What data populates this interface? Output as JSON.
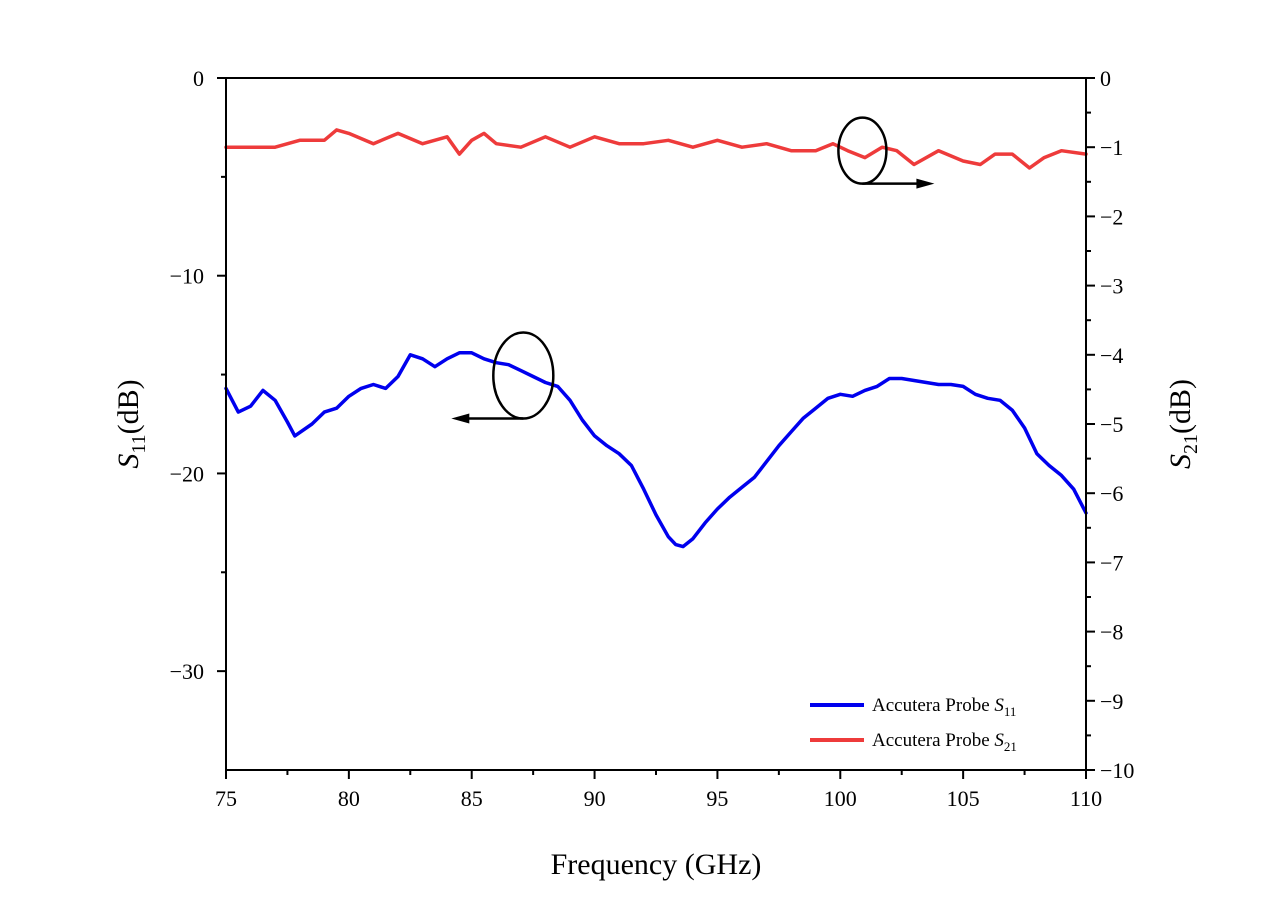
{
  "chart_data": {
    "type": "line",
    "xlabel": "Frequency (GHz)",
    "ylabel_left": {
      "main": "S",
      "sub": "11",
      "tail": "(dB)"
    },
    "ylabel_right": {
      "main": "S",
      "sub": "21",
      "tail": "(dB)"
    },
    "xlim": [
      75,
      110
    ],
    "ylim_left": [
      -35,
      0
    ],
    "ylim_right": [
      -10,
      0
    ],
    "x_ticks": [
      75,
      80,
      85,
      90,
      95,
      100,
      105,
      110
    ],
    "y_left_ticks": [
      0,
      -10,
      -20,
      -30
    ],
    "y_left_tick_labels": [
      "0",
      "−10",
      "−20",
      "−30"
    ],
    "y_right_ticks": [
      0,
      -1,
      -2,
      -3,
      -4,
      -5,
      -6,
      -7,
      -8,
      -9,
      -10
    ],
    "y_right_tick_labels": [
      "0",
      "−1",
      "−2",
      "−3",
      "−4",
      "−5",
      "−6",
      "−7",
      "−8",
      "−9",
      "−10"
    ],
    "grid": false,
    "legend_position": "bottom-right",
    "series": [
      {
        "name_main": "Accutera Probe ",
        "name_sub": "11",
        "axis": "left",
        "color": "#0000ee",
        "x": [
          75,
          75.5,
          76,
          76.5,
          77,
          77.5,
          77.8,
          78.5,
          79,
          79.5,
          80,
          80.5,
          81,
          81.5,
          82,
          82.5,
          83,
          83.5,
          84,
          84.5,
          85,
          85.5,
          86,
          86.5,
          87,
          87.5,
          88,
          88.5,
          89,
          89.5,
          90,
          90.5,
          91,
          91.5,
          92,
          92.5,
          93,
          93.3,
          93.6,
          94,
          94.5,
          95,
          95.5,
          96,
          96.5,
          97,
          97.5,
          98,
          98.5,
          99,
          99.5,
          100,
          100.5,
          101,
          101.5,
          102,
          102.5,
          103,
          103.5,
          104,
          104.5,
          105,
          105.5,
          106,
          106.5,
          107,
          107.5,
          108,
          108.5,
          109,
          109.5,
          110
        ],
        "y": [
          -15.7,
          -16.9,
          -16.6,
          -15.8,
          -16.3,
          -17.4,
          -18.1,
          -17.5,
          -16.9,
          -16.7,
          -16.1,
          -15.7,
          -15.5,
          -15.7,
          -15.1,
          -14.0,
          -14.2,
          -14.6,
          -14.2,
          -13.9,
          -13.9,
          -14.2,
          -14.4,
          -14.5,
          -14.8,
          -15.1,
          -15.4,
          -15.6,
          -16.3,
          -17.3,
          -18.1,
          -18.6,
          -19.0,
          -19.6,
          -20.8,
          -22.1,
          -23.2,
          -23.6,
          -23.7,
          -23.3,
          -22.5,
          -21.8,
          -21.2,
          -20.7,
          -20.2,
          -19.4,
          -18.6,
          -17.9,
          -17.2,
          -16.7,
          -16.2,
          -16.0,
          -16.1,
          -15.8,
          -15.6,
          -15.2,
          -15.2,
          -15.3,
          -15.4,
          -15.5,
          -15.5,
          -15.6,
          -16.0,
          -16.2,
          -16.3,
          -16.8,
          -17.7,
          -19.0,
          -19.6,
          -20.1,
          -20.8,
          -22.0
        ]
      },
      {
        "name_main": "Accutera Probe ",
        "name_sub": "21",
        "axis": "right",
        "color": "#ee3b3b",
        "x": [
          75,
          76,
          77,
          78,
          79,
          79.5,
          80,
          81,
          82,
          83,
          84,
          84.5,
          85,
          85.5,
          86,
          87,
          88,
          89,
          90,
          91,
          92,
          93,
          94,
          95,
          96,
          97,
          98,
          99,
          99.7,
          100.3,
          101,
          101.7,
          102.3,
          103,
          104,
          105,
          105.7,
          106.3,
          107,
          107.7,
          108.3,
          109,
          110
        ],
        "y": [
          -1.0,
          -1.0,
          -1.0,
          -0.9,
          -0.9,
          -0.75,
          -0.8,
          -0.95,
          -0.8,
          -0.95,
          -0.85,
          -1.1,
          -0.9,
          -0.8,
          -0.95,
          -1.0,
          -0.85,
          -1.0,
          -0.85,
          -0.95,
          -0.95,
          -0.9,
          -1.0,
          -0.9,
          -1.0,
          -0.95,
          -1.05,
          -1.05,
          -0.95,
          -1.05,
          -1.15,
          -1.0,
          -1.05,
          -1.25,
          -1.05,
          -1.2,
          -1.25,
          -1.1,
          -1.1,
          -1.3,
          -1.15,
          -1.05,
          -1.1
        ]
      }
    ],
    "annotations": [
      {
        "shape": "ellipse-with-arrow",
        "target_axis": "left",
        "x": 87.1,
        "y_right": -4.3,
        "arrow_direction": "left"
      },
      {
        "shape": "ellipse-with-arrow",
        "target_axis": "right",
        "x": 100.9,
        "y_right": -1.05,
        "arrow_direction": "right"
      }
    ]
  }
}
